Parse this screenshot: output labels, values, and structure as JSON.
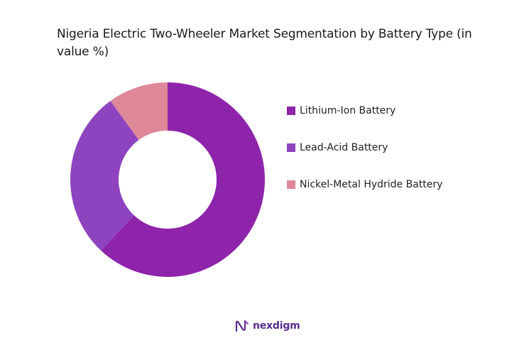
{
  "chart_data": {
    "type": "pie",
    "title": "Nigeria Electric Two-Wheeler Market Segmentation by Battery Type (in value %)",
    "categories": [
      "Lithium-Ion Battery",
      "Lead-Acid Battery",
      "Nickel-Metal Hydride Battery"
    ],
    "values": [
      62,
      28,
      10
    ],
    "colors": [
      "#8e24aa",
      "#8e44bf",
      "#de8899"
    ],
    "donut": true,
    "legend_position": "right"
  },
  "brand": {
    "name": "nexdigm",
    "icon": "nexdigm-logo-icon"
  }
}
